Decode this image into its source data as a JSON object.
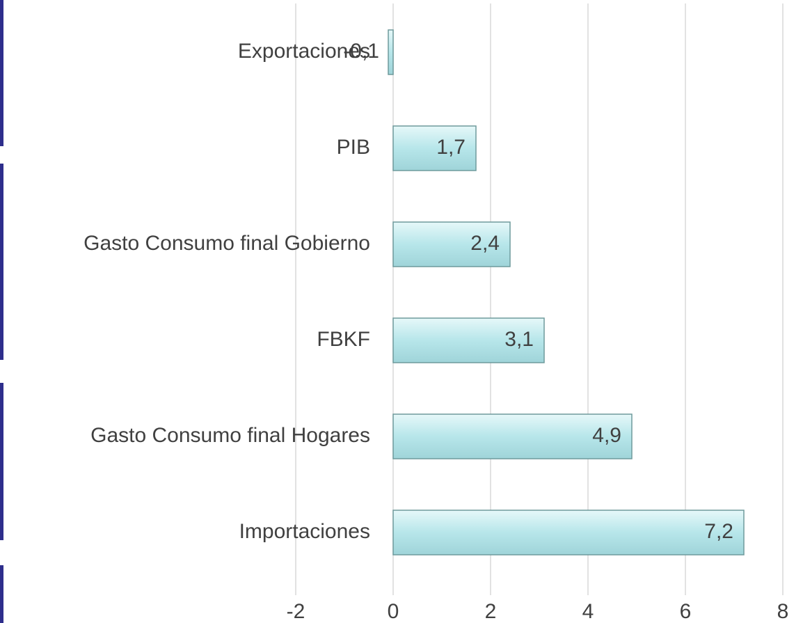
{
  "chart_data": {
    "type": "hbar",
    "categories": [
      "Exportaciones",
      "PIB",
      "Gasto Consumo final Gobierno",
      "FBKF",
      "Gasto Consumo final Hogares",
      "Importaciones"
    ],
    "values": [
      -0.1,
      1.7,
      2.4,
      3.1,
      4.9,
      7.2
    ],
    "value_labels": [
      "-0,1",
      "1,7",
      "2,4",
      "3,1",
      "4,9",
      "7,2"
    ],
    "color": "#b7e6ea",
    "xlim": [
      -2,
      8
    ],
    "xticks": [
      -2,
      0,
      2,
      4,
      6,
      8
    ],
    "grid": true
  }
}
